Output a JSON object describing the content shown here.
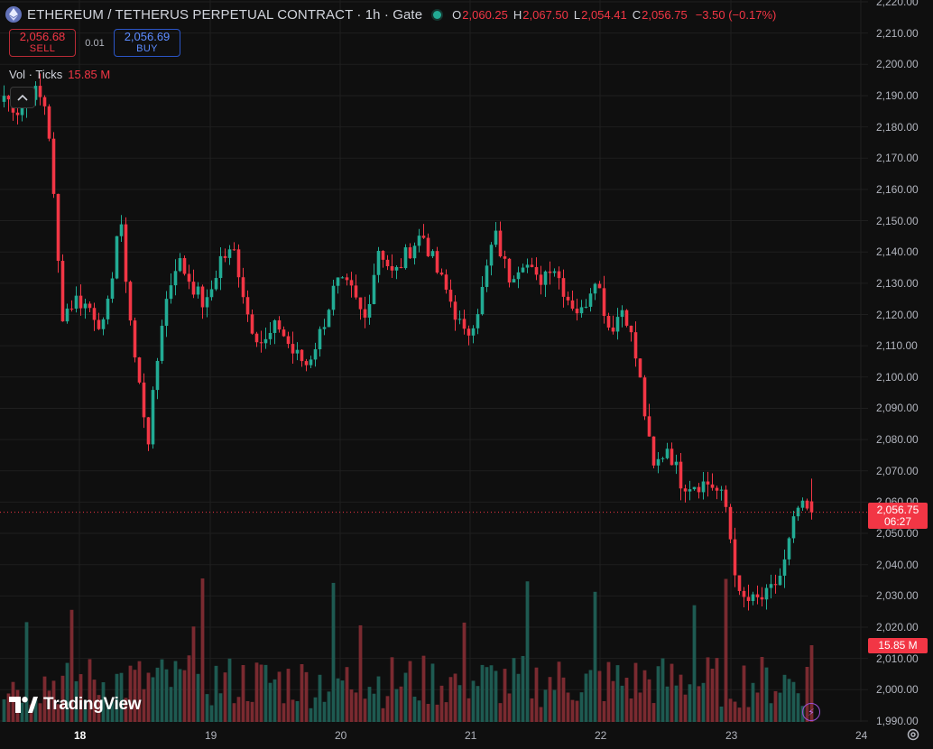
{
  "header": {
    "title": "ETHEREUM / TETHERUS PERPETUAL CONTRACT · 1h · Gate",
    "ohlc": [
      {
        "k": "O",
        "v": "2,060.25"
      },
      {
        "k": "H",
        "v": "2,067.50"
      },
      {
        "k": "L",
        "v": "2,054.41"
      },
      {
        "k": "C",
        "v": "2,056.75"
      },
      {
        "k": "",
        "v": "−3.50 (−0.17%)"
      }
    ]
  },
  "trade": {
    "sell_price": "2,056.68",
    "sell_label": "SELL",
    "spread": "0.01",
    "buy_price": "2,056.69",
    "buy_label": "BUY"
  },
  "volume_legend": {
    "label": "Vol · Ticks",
    "value": "15.85 M"
  },
  "price_axis": [
    "2,220.00",
    "2,210.00",
    "2,200.00",
    "2,190.00",
    "2,180.00",
    "2,170.00",
    "2,160.00",
    "2,150.00",
    "2,140.00",
    "2,130.00",
    "2,120.00",
    "2,110.00",
    "2,100.00",
    "2,090.00",
    "2,080.00",
    "2,070.00",
    "2,060.00",
    "2,050.00",
    "2,040.00",
    "2,030.00",
    "2,020.00",
    "2,010.00",
    "2,000.00",
    "1,990.00"
  ],
  "time_axis": [
    "18",
    "19",
    "20",
    "21",
    "22",
    "23",
    "24"
  ],
  "last_price": {
    "value": "2,056.75",
    "countdown": "06:27"
  },
  "volume_tag": "15.85 M",
  "brand": "TradingView",
  "colors": {
    "up": "#22ab94",
    "down": "#f23645",
    "bg": "#0f0f0f",
    "grid": "#1f1f1f"
  },
  "chart_data": {
    "type": "candlestick",
    "interval": "1h",
    "ylim": [
      1990,
      2220
    ],
    "x": [
      "18",
      "19",
      "20",
      "21",
      "22",
      "23",
      "24"
    ],
    "close_path": [
      2190,
      2185,
      2192,
      2186,
      2120,
      2125,
      2122,
      2115,
      2152,
      2108,
      2080,
      2120,
      2138,
      2130,
      2122,
      2138,
      2140,
      2118,
      2110,
      2117,
      2108,
      2104,
      2115,
      2130,
      2128,
      2118,
      2142,
      2132,
      2140,
      2146,
      2134,
      2124,
      2112,
      2124,
      2146,
      2132,
      2138,
      2130,
      2137,
      2126,
      2120,
      2133,
      2115,
      2123,
      2102,
      2070,
      2078,
      2066,
      2066,
      2066,
      2060,
      2029,
      2028,
      2030,
      2038,
      2058,
      2056.75
    ],
    "volume_unit": "M",
    "last_volume": 15.85
  }
}
